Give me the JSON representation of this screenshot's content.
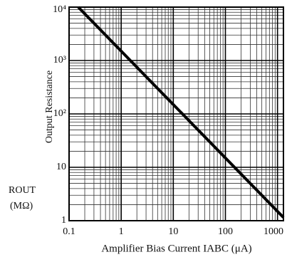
{
  "chart_data": {
    "type": "line",
    "ylabel": "Output Resistance",
    "y_symbol": "ROUT",
    "y_unit": "(MΩ)",
    "xlabel": "Amplifier Bias Current IABC (μA)",
    "xscale": "log",
    "yscale": "log",
    "x": [
      0.15,
      1300
    ],
    "series": [
      {
        "color": "#000000",
        "values": [
          10000,
          1.15
        ]
      }
    ],
    "xlim": [
      0.1,
      1300
    ],
    "ylim": [
      1,
      10000
    ],
    "xticks": [
      0.1,
      1,
      10,
      100,
      1000
    ],
    "yticks": [
      1,
      10,
      {
        "value": 100,
        "label": "10²"
      },
      {
        "value": 1000,
        "label": "10³"
      },
      {
        "value": 10000,
        "label": "10⁴"
      }
    ],
    "xminor": [
      0.2,
      0.3,
      0.4,
      0.5,
      0.6,
      0.7,
      0.8,
      0.9,
      2,
      3,
      4,
      5,
      6,
      7,
      8,
      9,
      20,
      30,
      40,
      50,
      60,
      70,
      80,
      90,
      200,
      300,
      400,
      500,
      600,
      700,
      800,
      900
    ],
    "yminor": [
      2,
      3,
      4,
      5,
      6,
      7,
      8,
      9,
      20,
      30,
      40,
      50,
      60,
      70,
      80,
      90,
      200,
      300,
      400,
      500,
      600,
      700,
      800,
      900,
      2000,
      3000,
      4000,
      5000,
      6000,
      7000,
      8000,
      9000
    ],
    "grid": true
  }
}
